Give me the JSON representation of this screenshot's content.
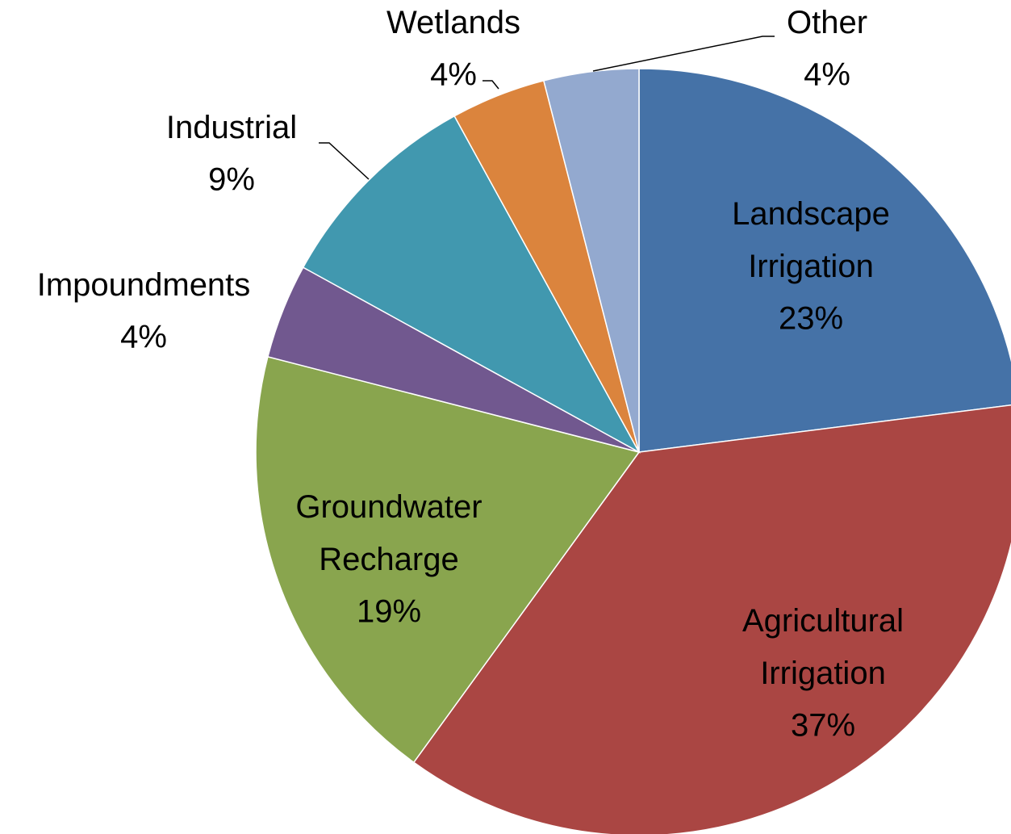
{
  "chart_data": {
    "type": "pie",
    "categories": [
      "Landscape Irrigation",
      "Agricultural Irrigation",
      "Groundwater Recharge",
      "Impoundments",
      "Industrial",
      "Wetlands",
      "Other"
    ],
    "values": [
      23,
      37,
      19,
      4,
      9,
      4,
      4
    ],
    "value_labels": [
      "23%",
      "37%",
      "19%",
      "4%",
      "9%",
      "4%",
      "4%"
    ],
    "colors": [
      "#4572a7",
      "#aa4643",
      "#89a54e",
      "#71588f",
      "#4198af",
      "#db843d",
      "#93a9cf"
    ]
  }
}
